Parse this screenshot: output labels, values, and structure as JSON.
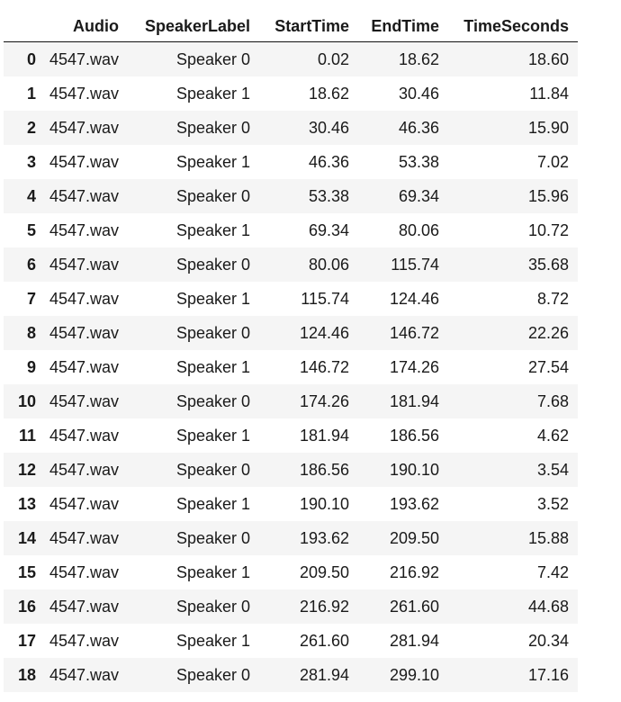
{
  "table": {
    "columns": {
      "index": "",
      "audio": "Audio",
      "speaker": "SpeakerLabel",
      "start": "StartTime",
      "end": "EndTime",
      "seconds": "TimeSeconds"
    },
    "rows": [
      {
        "index": "0",
        "audio": "4547.wav",
        "speaker": "Speaker 0",
        "start": "0.02",
        "end": "18.62",
        "seconds": "18.60"
      },
      {
        "index": "1",
        "audio": "4547.wav",
        "speaker": "Speaker 1",
        "start": "18.62",
        "end": "30.46",
        "seconds": "11.84"
      },
      {
        "index": "2",
        "audio": "4547.wav",
        "speaker": "Speaker 0",
        "start": "30.46",
        "end": "46.36",
        "seconds": "15.90"
      },
      {
        "index": "3",
        "audio": "4547.wav",
        "speaker": "Speaker 1",
        "start": "46.36",
        "end": "53.38",
        "seconds": "7.02"
      },
      {
        "index": "4",
        "audio": "4547.wav",
        "speaker": "Speaker 0",
        "start": "53.38",
        "end": "69.34",
        "seconds": "15.96"
      },
      {
        "index": "5",
        "audio": "4547.wav",
        "speaker": "Speaker 1",
        "start": "69.34",
        "end": "80.06",
        "seconds": "10.72"
      },
      {
        "index": "6",
        "audio": "4547.wav",
        "speaker": "Speaker 0",
        "start": "80.06",
        "end": "115.74",
        "seconds": "35.68"
      },
      {
        "index": "7",
        "audio": "4547.wav",
        "speaker": "Speaker 1",
        "start": "115.74",
        "end": "124.46",
        "seconds": "8.72"
      },
      {
        "index": "8",
        "audio": "4547.wav",
        "speaker": "Speaker 0",
        "start": "124.46",
        "end": "146.72",
        "seconds": "22.26"
      },
      {
        "index": "9",
        "audio": "4547.wav",
        "speaker": "Speaker 1",
        "start": "146.72",
        "end": "174.26",
        "seconds": "27.54"
      },
      {
        "index": "10",
        "audio": "4547.wav",
        "speaker": "Speaker 0",
        "start": "174.26",
        "end": "181.94",
        "seconds": "7.68"
      },
      {
        "index": "11",
        "audio": "4547.wav",
        "speaker": "Speaker 1",
        "start": "181.94",
        "end": "186.56",
        "seconds": "4.62"
      },
      {
        "index": "12",
        "audio": "4547.wav",
        "speaker": "Speaker 0",
        "start": "186.56",
        "end": "190.10",
        "seconds": "3.54"
      },
      {
        "index": "13",
        "audio": "4547.wav",
        "speaker": "Speaker 1",
        "start": "190.10",
        "end": "193.62",
        "seconds": "3.52"
      },
      {
        "index": "14",
        "audio": "4547.wav",
        "speaker": "Speaker 0",
        "start": "193.62",
        "end": "209.50",
        "seconds": "15.88"
      },
      {
        "index": "15",
        "audio": "4547.wav",
        "speaker": "Speaker 1",
        "start": "209.50",
        "end": "216.92",
        "seconds": "7.42"
      },
      {
        "index": "16",
        "audio": "4547.wav",
        "speaker": "Speaker 0",
        "start": "216.92",
        "end": "261.60",
        "seconds": "44.68"
      },
      {
        "index": "17",
        "audio": "4547.wav",
        "speaker": "Speaker 1",
        "start": "261.60",
        "end": "281.94",
        "seconds": "20.34"
      },
      {
        "index": "18",
        "audio": "4547.wav",
        "speaker": "Speaker 0",
        "start": "281.94",
        "end": "299.10",
        "seconds": "17.16"
      }
    ]
  }
}
